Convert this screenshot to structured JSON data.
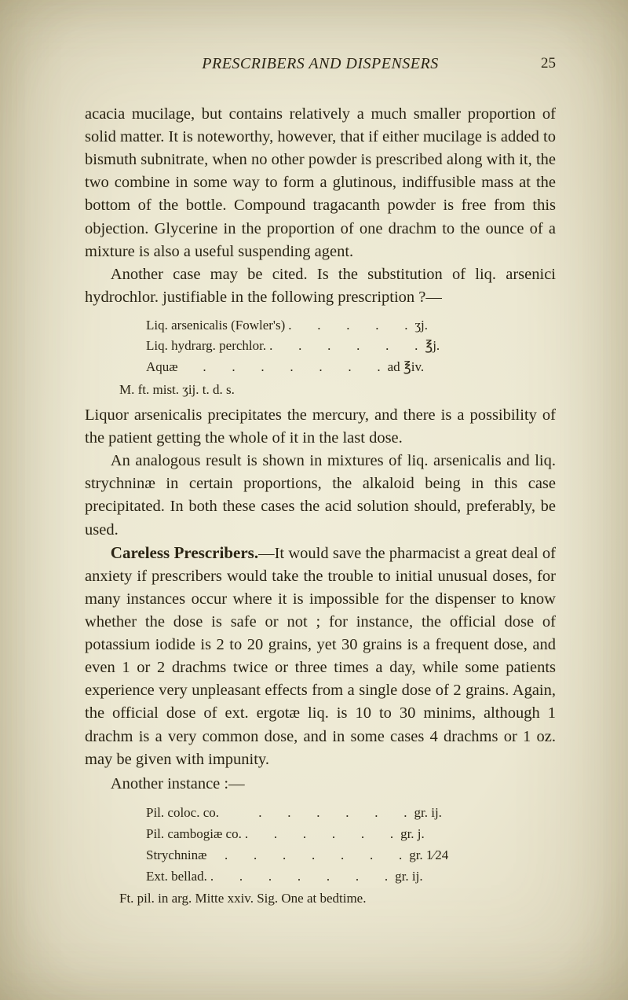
{
  "page": {
    "running_title": "PRESCRIBERS AND DISPENSERS",
    "number": "25"
  },
  "para1": "acacia mucilage, but contains relatively a much smaller proportion of solid matter. It is noteworthy, however, that if either mucilage is added to bismuth subnitrate, when no other powder is prescribed along with it, the two combine in some way to form a glutinous, indiffusible mass at the bottom of the bottle. Compound tragacanth powder is free from this objection. Glycerine in the proportion of one drachm to the ounce of a mixture is also a useful suspending agent.",
  "para2": "Another case may be cited. Is the substitution of liq. arsenici hydrochlor. justifiable in the following prescription ?—",
  "rx1": {
    "r1": {
      "label": "Liq. arsenicalis (Fowler's)",
      "dots": ".   .   .   .   .",
      "val": "ʒj."
    },
    "r2": {
      "label": "Liq. hydrarg. perchlor.",
      "dots": ".   .   .   .   .   .",
      "val": "℥j."
    },
    "r3": {
      "label": "Aquæ",
      "dots": "   .   .   .   .   .   .   .",
      "val": "ad ℥iv."
    },
    "sig": "M. ft. mist. ʒij. t. d. s."
  },
  "para3": "Liquor arsenicalis precipitates the mercury, and there is a possibility of the patient getting the whole of it in the last dose.",
  "para4": "An analogous result is shown in mixtures of liq. arsenicalis and liq. strychninæ in certain proportions, the alkaloid being in this case precipitated. In both these cases the acid solution should, preferably, be used.",
  "section": {
    "head": "Careless Prescribers.",
    "body": "—It would save the pharmacist a great deal of anxiety if prescribers would take the trouble to initial unusual doses, for many instances occur where it is impossible for the dispenser to know whether the dose is safe or not ; for instance, the official dose of potassium iodide is 2 to 20 grains, yet 30 grains is a frequent dose, and even 1 or 2 drachms twice or three times a day, while some patients experience very unpleasant effects from a single dose of 2 grains. Again, the official dose of ext. ergotæ liq. is 10 to 30 minims, although 1 drachm is a very common dose, and in some cases 4 drachms or 1 oz. may be given with impunity."
  },
  "another": "Another instance :—",
  "rx2": {
    "r1": {
      "label": "Pil. coloc. co.",
      "dots": "     .   .   .   .   .   .",
      "val": "gr. ij."
    },
    "r2": {
      "label": "Pil. cambogiæ co.",
      "dots": ".   .   .   .   .   .",
      "val": "gr. j."
    },
    "r3": {
      "label": "Strychninæ",
      "dots": "  .   .   .   .   .   .   .",
      "val": "gr. 1⁄24"
    },
    "r4": {
      "label": "Ext. bellad.",
      "dots": ".   .   .   .   .   .   .",
      "val": "gr. ij."
    },
    "ft": "Ft. pil. in arg.   Mitte xxiv.   Sig.   One at bedtime."
  },
  "colors": {
    "text": "#2a2414",
    "page_bg": "#eae7d8"
  }
}
